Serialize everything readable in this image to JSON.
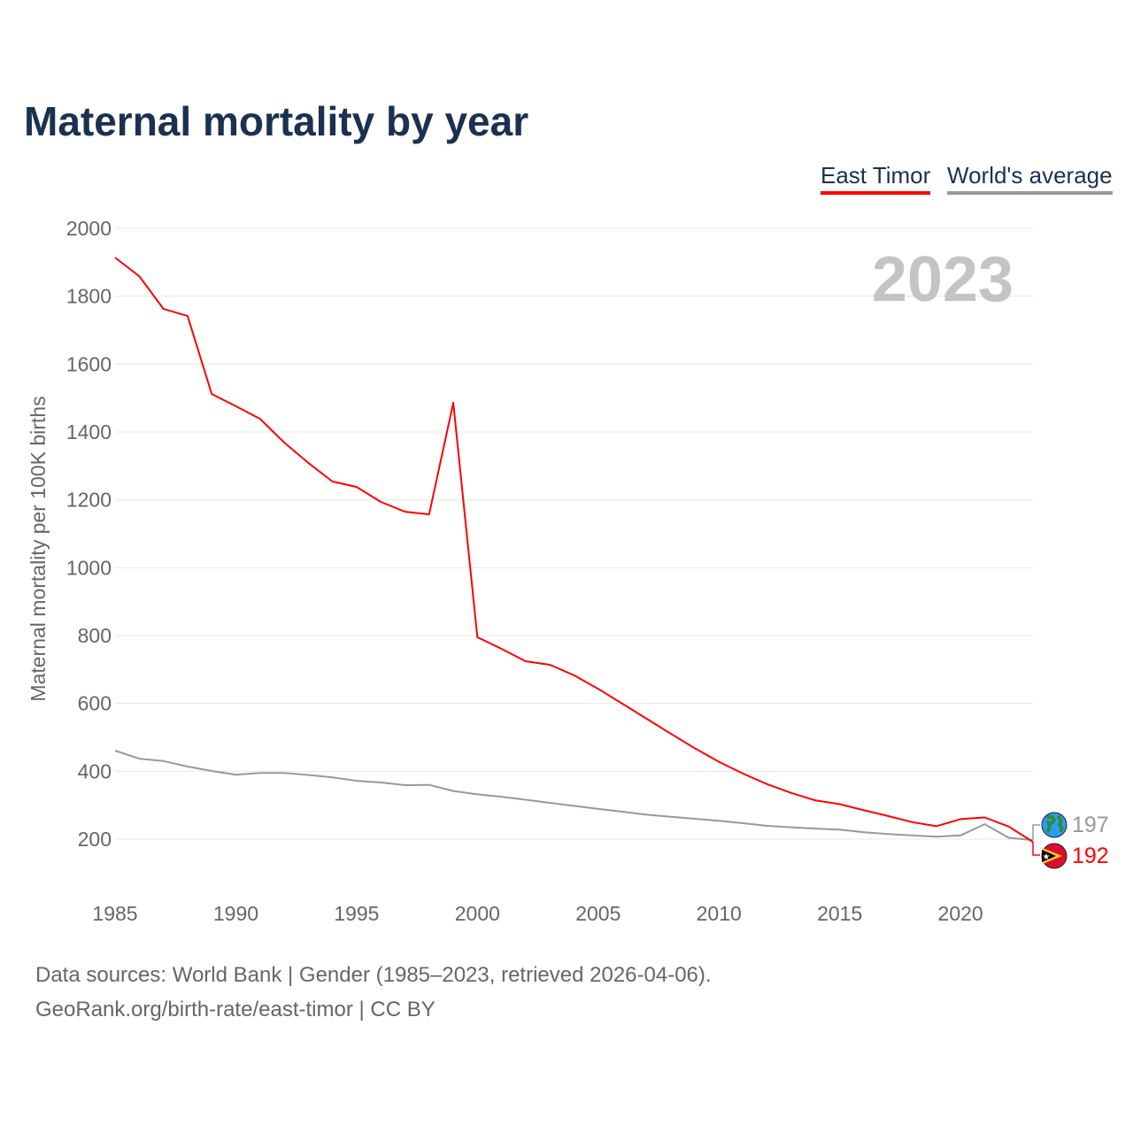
{
  "title": "Maternal mortality by year",
  "legend": [
    {
      "label": "East Timor",
      "color": "#ff0000"
    },
    {
      "label": "World's average",
      "color": "#999999"
    }
  ],
  "year_label": "2023",
  "source_line1": "Data sources: World Bank | Gender (1985–2023, retrieved 2026-04-06).",
  "source_line2": "GeoRank.org/birth-rate/east-timor | CC BY",
  "chart_data": {
    "type": "line",
    "title": "Maternal mortality by year",
    "xlabel": "",
    "ylabel": "Maternal mortality per 100K births",
    "xlim": [
      1985,
      2023
    ],
    "ylim": [
      100,
      2000
    ],
    "yticks": [
      200,
      400,
      600,
      800,
      1000,
      1200,
      1400,
      1600,
      1800,
      2000
    ],
    "xticks": [
      1985,
      1990,
      1995,
      2000,
      2005,
      2010,
      2015,
      2020
    ],
    "grid": true,
    "legend_position": "top-right",
    "x": [
      1985,
      1986,
      1987,
      1988,
      1989,
      1990,
      1991,
      1992,
      1993,
      1994,
      1995,
      1996,
      1997,
      1998,
      1999,
      2000,
      2001,
      2002,
      2003,
      2004,
      2005,
      2006,
      2007,
      2008,
      2009,
      2010,
      2011,
      2012,
      2013,
      2014,
      2015,
      2016,
      2017,
      2018,
      2019,
      2020,
      2021,
      2022,
      2023
    ],
    "series": [
      {
        "name": "East Timor",
        "color": "#ff0000",
        "end_label": "192",
        "values": [
          1914,
          1859,
          1763,
          1742,
          1512,
          1476,
          1439,
          1369,
          1309,
          1254,
          1238,
          1194,
          1165,
          1157,
          1486,
          795,
          761,
          724,
          714,
          683,
          643,
          599,
          555,
          511,
          468,
          428,
          393,
          362,
          336,
          314,
          303,
          285,
          268,
          250,
          238,
          259,
          264,
          237,
          192
        ]
      },
      {
        "name": "World's average",
        "color": "#999999",
        "end_label": "197",
        "values": [
          461,
          437,
          430,
          414,
          401,
          390,
          395,
          395,
          389,
          382,
          372,
          367,
          359,
          360,
          342,
          332,
          325,
          316,
          307,
          298,
          289,
          281,
          272,
          266,
          260,
          254,
          247,
          239,
          235,
          231,
          228,
          220,
          215,
          211,
          207,
          211,
          244,
          204,
          197
        ]
      }
    ]
  }
}
